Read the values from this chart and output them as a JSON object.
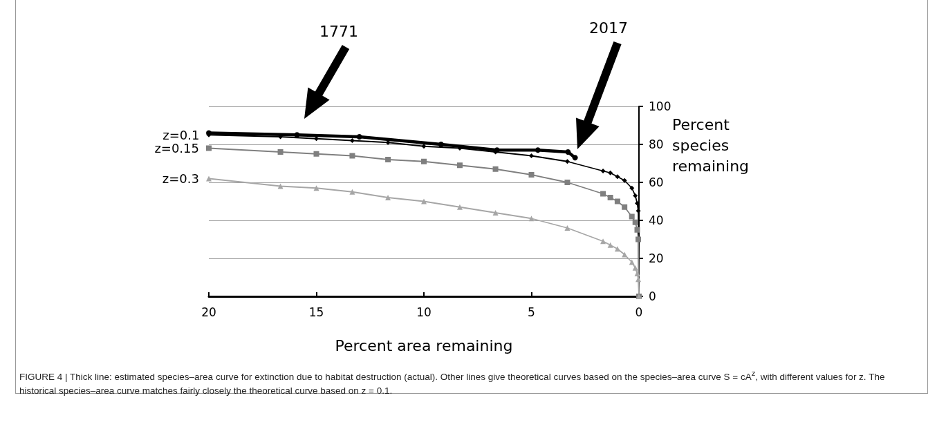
{
  "chart_data": {
    "type": "line",
    "xlabel": "Percent area remaining",
    "ylabel": "Percent species remaining",
    "xlim": [
      20,
      0
    ],
    "xticks": [
      20,
      15,
      10,
      5,
      0
    ],
    "ylim": [
      0,
      100
    ],
    "yticks": [
      0,
      20,
      40,
      60,
      80,
      100
    ],
    "grid": "y",
    "legend": false,
    "series": [
      {
        "name": "z=0.1",
        "color": "#000000",
        "marker": "diamond",
        "x": [
          20,
          16.67,
          15,
          13.33,
          11.67,
          10,
          8.33,
          6.67,
          5,
          3.33,
          1.67,
          1.33,
          1,
          0.67,
          0.33,
          0.17,
          0.08,
          0.03,
          0
        ],
        "values": [
          85,
          84,
          83,
          82,
          81,
          79,
          78,
          76,
          74,
          71,
          66,
          65,
          63,
          61,
          57,
          53,
          49,
          45,
          0
        ]
      },
      {
        "name": "z=0.15",
        "color": "#7f7f7f",
        "marker": "square",
        "x": [
          20,
          16.67,
          15,
          13.33,
          11.67,
          10,
          8.33,
          6.67,
          5,
          3.33,
          1.67,
          1.33,
          1,
          0.67,
          0.33,
          0.17,
          0.08,
          0.03,
          0
        ],
        "values": [
          78,
          76,
          75,
          74,
          72,
          71,
          69,
          67,
          64,
          60,
          54,
          52,
          50,
          47,
          42,
          39,
          35,
          30,
          0
        ]
      },
      {
        "name": "z=0.3",
        "color": "#a6a6a6",
        "marker": "triangle",
        "x": [
          20,
          16.67,
          15,
          13.33,
          11.67,
          10,
          8.33,
          6.67,
          5,
          3.33,
          1.67,
          1.33,
          1,
          0.67,
          0.33,
          0.17,
          0.08,
          0.03,
          0
        ],
        "values": [
          62,
          58,
          57,
          55,
          52,
          50,
          47,
          44,
          41,
          36,
          29,
          27,
          25,
          22,
          18,
          15,
          12,
          9,
          0
        ]
      },
      {
        "color": "#000000",
        "marker": "circle",
        "x": [
          20,
          15.9,
          13,
          9.2,
          6.6,
          4.7,
          3.3,
          2.97
        ],
        "values": [
          86,
          85,
          84,
          80,
          77,
          77,
          76,
          73
        ]
      }
    ],
    "annotations": [
      "1771",
      "2017",
      "FIGURE 4 | Thick line: estimated species–area curve for extinction due to habitat destruction (actual). Other lines give theoretical curves based on the species–area curve S = cA$^{z}$, with different values for z. The historical species–area curve matches fairly closely the theoretical curve based on z = 0.1."
    ]
  }
}
